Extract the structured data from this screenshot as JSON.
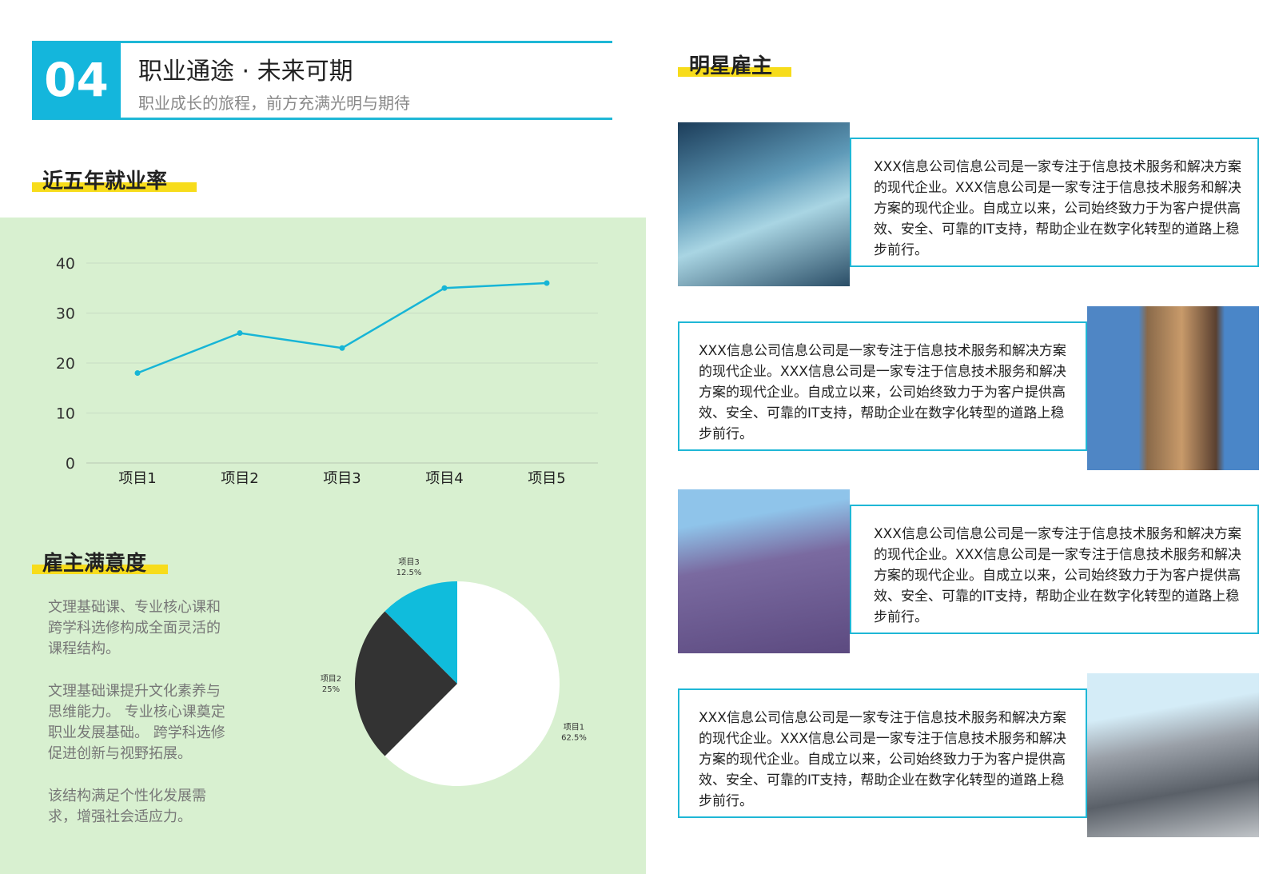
{
  "header": {
    "number": "04",
    "title": "职业通途 · 未来可期",
    "subtitle": "职业成长的旅程，前方充满光明与期待"
  },
  "sections": {
    "rate": "近五年就业率",
    "satisfaction": "雇主满意度",
    "employers": "明星雇主"
  },
  "satisfaction_text": [
    "文理基础课、专业核心课和跨学科选修构成全面灵活的课程结构。",
    "文理基础课提升文化素养与思维能力。 专业核心课奠定职业发展基础。 跨学科选修促进创新与视野拓展。",
    "该结构满足个性化发展需求，增强社会适应力。"
  ],
  "employers": [
    "XXX信息公司信息公司是一家专注于信息技术服务和解决方案的现代企业。XXX信息公司是一家专注于信息技术服务和解决方案的现代企业。自成立以来，公司始终致力于为客户提供高效、安全、可靠的IT支持，帮助企业在数字化转型的道路上稳步前行。",
    "XXX信息公司信息公司是一家专注于信息技术服务和解决方案的现代企业。XXX信息公司是一家专注于信息技术服务和解决方案的现代企业。自成立以来，公司始终致力于为客户提供高效、安全、可靠的IT支持，帮助企业在数字化转型的道路上稳步前行。",
    "XXX信息公司信息公司是一家专注于信息技术服务和解决方案的现代企业。XXX信息公司是一家专注于信息技术服务和解决方案的现代企业。自成立以来，公司始终致力于为客户提供高效、安全、可靠的IT支持，帮助企业在数字化转型的道路上稳步前行。",
    "XXX信息公司信息公司是一家专注于信息技术服务和解决方案的现代企业。XXX信息公司是一家专注于信息技术服务和解决方案的现代企业。自成立以来，公司始终致力于为客户提供高效、安全、可靠的IT支持，帮助企业在数字化转型的道路上稳步前行。"
  ],
  "chart_data": [
    {
      "type": "line",
      "categories": [
        "项目1",
        "项目2",
        "项目3",
        "项目4",
        "项目5"
      ],
      "values": [
        18,
        26,
        23,
        35,
        36
      ],
      "color": "#17b5d6",
      "ylim": [
        0,
        40
      ],
      "yticks": [
        0,
        10,
        20,
        30,
        40
      ],
      "grid": true
    },
    {
      "type": "pie",
      "categories": [
        "项目1",
        "项目2",
        "项目3"
      ],
      "values": [
        62.5,
        25,
        12.5
      ],
      "value_labels": [
        "62.5%",
        "25%",
        "12.5%"
      ],
      "colors": [
        "#ffffff",
        "#333333",
        "#10bcdc"
      ]
    }
  ]
}
